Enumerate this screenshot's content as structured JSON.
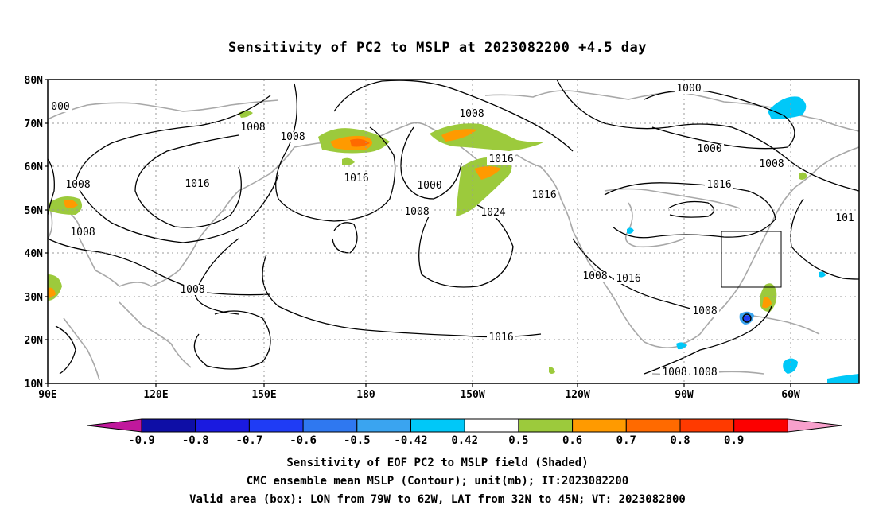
{
  "title": "Sensitivity of PC2 to MSLP at 2023082200 +4.5 day",
  "map": {
    "lat_labels": [
      "80N",
      "70N",
      "60N",
      "50N",
      "40N",
      "30N",
      "20N",
      "10N"
    ],
    "lon_labels": [
      "90E",
      "120E",
      "150E",
      "180",
      "150W",
      "120W",
      "90W",
      "60W"
    ],
    "contour_labels": [
      {
        "text": "000"
      },
      {
        "text": "1008"
      },
      {
        "text": "1008"
      },
      {
        "text": "1008"
      },
      {
        "text": "1008"
      },
      {
        "text": "1016"
      },
      {
        "text": "1016"
      },
      {
        "text": "1008"
      },
      {
        "text": "1016"
      },
      {
        "text": "1000"
      },
      {
        "text": "1008"
      },
      {
        "text": "1024"
      },
      {
        "text": "1016"
      },
      {
        "text": "1008"
      },
      {
        "text": "1016"
      },
      {
        "text": "1016"
      },
      {
        "text": "1000"
      },
      {
        "text": "1000"
      },
      {
        "text": "1008"
      },
      {
        "text": "1016"
      },
      {
        "text": "101"
      },
      {
        "text": "1008"
      },
      {
        "text": "1008"
      },
      {
        "text": "1008"
      },
      {
        "text": "1008"
      }
    ],
    "valid_box": {
      "lon_west": "79W",
      "lon_east": "62W",
      "lat_south": "32N",
      "lat_north": "45N"
    }
  },
  "colorbar": {
    "labels": [
      "-0.9",
      "-0.8",
      "-0.7",
      "-0.6",
      "-0.5",
      "-0.42",
      "0.42",
      "0.5",
      "0.6",
      "0.7",
      "0.8",
      "0.9"
    ],
    "colors": [
      "#c0189c",
      "#0e0ea6",
      "#1a1ae0",
      "#1f3cf5",
      "#2f78f0",
      "#3aa4f0",
      "#00c8f8",
      "#ffffff",
      "#9cca3c",
      "#ff9a00",
      "#ff6a00",
      "#ff3a00",
      "#fc0000",
      "#f8a0cc"
    ]
  },
  "captions": {
    "line1": "Sensitivity of EOF PC2 to MSLP field (Shaded)",
    "line2": "CMC ensemble mean MSLP (Contour); unit(mb); IT:2023082200",
    "line3": "Valid area (box): LON from 79W to 62W, LAT from 32N to 45N; VT: 2023082800"
  }
}
